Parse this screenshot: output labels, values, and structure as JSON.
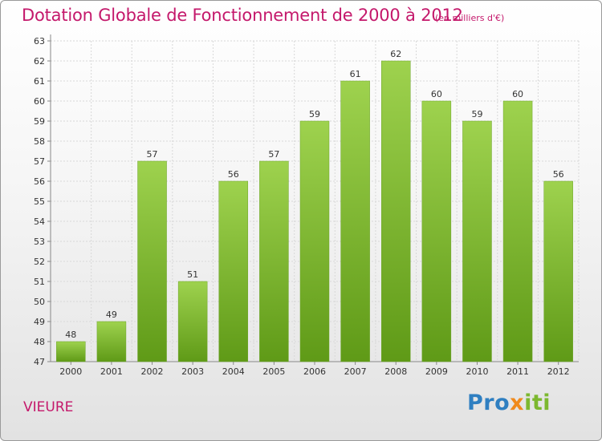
{
  "title": "Dotation Globale de Fonctionnement de 2000 à 2012",
  "unit": "(en milliers d'€)",
  "commune": "VIEURE",
  "logo": {
    "part1": "Pro",
    "part2": "x",
    "part3": "iti"
  },
  "colors": {
    "accent": "#c4186b",
    "bar_top": "#9ed24e",
    "bar_bottom": "#5f9a17",
    "grid": "#d8d8d8"
  },
  "chart_data": {
    "type": "bar",
    "title": "Dotation Globale de Fonctionnement de 2000 à 2012",
    "xlabel": "",
    "ylabel": "",
    "categories": [
      "2000",
      "2001",
      "2002",
      "2003",
      "2004",
      "2005",
      "2006",
      "2007",
      "2008",
      "2009",
      "2010",
      "2011",
      "2012"
    ],
    "values": [
      48,
      49,
      57,
      51,
      56,
      57,
      59,
      61,
      62,
      60,
      59,
      60,
      56
    ],
    "ylim": [
      47,
      63
    ],
    "yticks": [
      47,
      48,
      49,
      50,
      51,
      52,
      53,
      54,
      55,
      56,
      57,
      58,
      59,
      60,
      61,
      62,
      63
    ],
    "grid": true,
    "data_labels": true
  }
}
